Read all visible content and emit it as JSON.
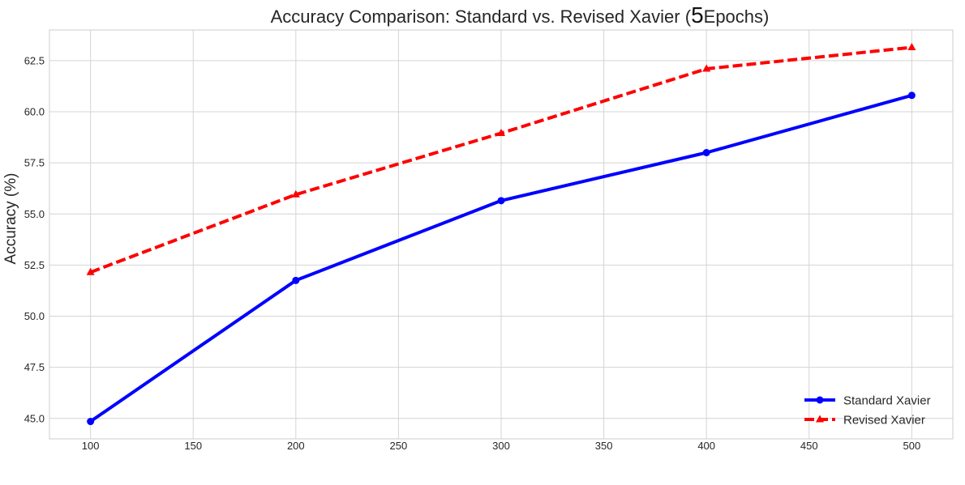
{
  "chart_data": {
    "type": "line",
    "title": {
      "before": "Accuracy Comparison: Standard vs. Revised Xavier (",
      "number": "5",
      "after": "Epochs)"
    },
    "xlabel": "",
    "ylabel": "Accuracy (%)",
    "x": [
      100,
      200,
      300,
      400,
      500
    ],
    "xlim": [
      80,
      520
    ],
    "ylim": [
      44.0,
      64.0
    ],
    "xticks": [
      "100",
      "150",
      "200",
      "250",
      "300",
      "350",
      "400",
      "450",
      "500"
    ],
    "yticks": [
      "45.0",
      "47.5",
      "50.0",
      "52.5",
      "55.0",
      "57.5",
      "60.0",
      "62.5"
    ],
    "grid": true,
    "legend_position": "bottom-right",
    "series": [
      {
        "name": "Standard Xavier",
        "values": [
          44.85,
          51.75,
          55.65,
          58.0,
          60.8
        ],
        "color": "#0000ff",
        "line_style": "solid",
        "marker": "circle"
      },
      {
        "name": "Revised Xavier",
        "values": [
          52.15,
          55.95,
          58.95,
          62.1,
          63.15
        ],
        "color": "#ff0000",
        "line_style": "dashed",
        "marker": "triangle"
      }
    ]
  }
}
